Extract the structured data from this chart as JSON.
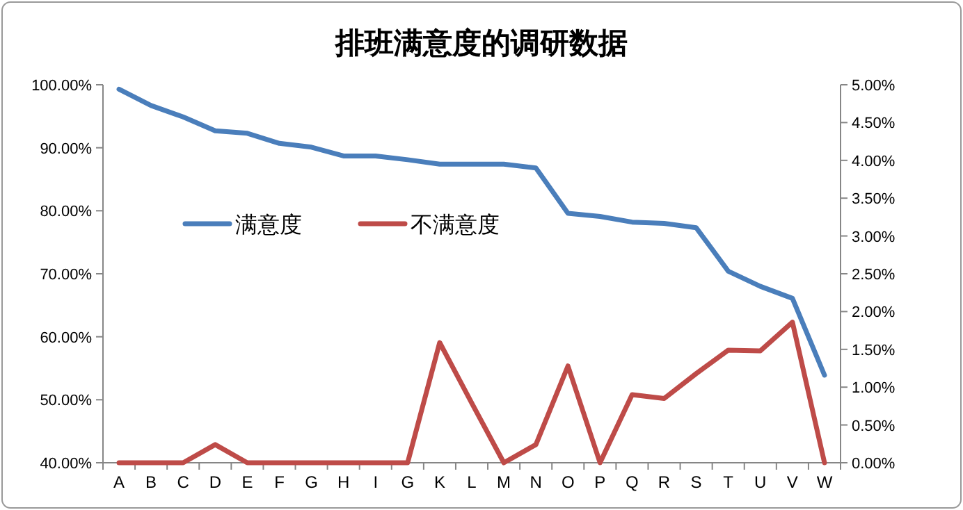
{
  "chart_data": {
    "type": "line",
    "title": "排班满意度的调研数据",
    "categories": [
      "A",
      "B",
      "C",
      "D",
      "E",
      "F",
      "G",
      "H",
      "I",
      "G",
      "K",
      "L",
      "M",
      "N",
      "O",
      "P",
      "Q",
      "R",
      "S",
      "T",
      "U",
      "V",
      "W"
    ],
    "series": [
      {
        "name": "满意度",
        "color": "#4a7ebb",
        "values": [
          99.3,
          96.7,
          94.9,
          92.7,
          92.3,
          90.7,
          90.1,
          88.7,
          88.7,
          88.1,
          87.4,
          87.4,
          87.4,
          86.8,
          79.6,
          79.1,
          78.2,
          78.0,
          77.3,
          70.4,
          68.0,
          66.1,
          53.9
        ]
      },
      {
        "name": "不满意度",
        "color": "#be4b48",
        "axis": "y2",
        "values": [
          0,
          0,
          0,
          0.24,
          0,
          0,
          0,
          0,
          0,
          0,
          1.59,
          0.79,
          0,
          0.24,
          1.28,
          0,
          0.9,
          0.85,
          1.18,
          1.49,
          1.48,
          1.86,
          0
        ]
      }
    ],
    "ylim": [
      40,
      100
    ],
    "yticks": [
      {
        "value": 40,
        "label": "40.00%"
      },
      {
        "value": 50,
        "label": "50.00%"
      },
      {
        "value": 60,
        "label": "60.00%"
      },
      {
        "value": 70,
        "label": "70.00%"
      },
      {
        "value": 80,
        "label": "80.00%"
      },
      {
        "value": 90,
        "label": "90.00%"
      },
      {
        "value": 100,
        "label": "100.00%"
      }
    ],
    "y2lim": [
      0,
      5
    ],
    "y2ticks": [
      {
        "value": 0,
        "label": "0.00%"
      },
      {
        "value": 0.5,
        "label": "0.50%"
      },
      {
        "value": 1,
        "label": "1.00%"
      },
      {
        "value": 1.5,
        "label": "1.50%"
      },
      {
        "value": 2,
        "label": "2.00%"
      },
      {
        "value": 2.5,
        "label": "2.50%"
      },
      {
        "value": 3,
        "label": "3.00%"
      },
      {
        "value": 3.5,
        "label": "3.50%"
      },
      {
        "value": 4,
        "label": "4.00%"
      },
      {
        "value": 4.5,
        "label": "4.50%"
      },
      {
        "value": 5,
        "label": "5.00%"
      }
    ],
    "legend": "left",
    "grid": false,
    "marker": "none",
    "line_style": "solid"
  }
}
